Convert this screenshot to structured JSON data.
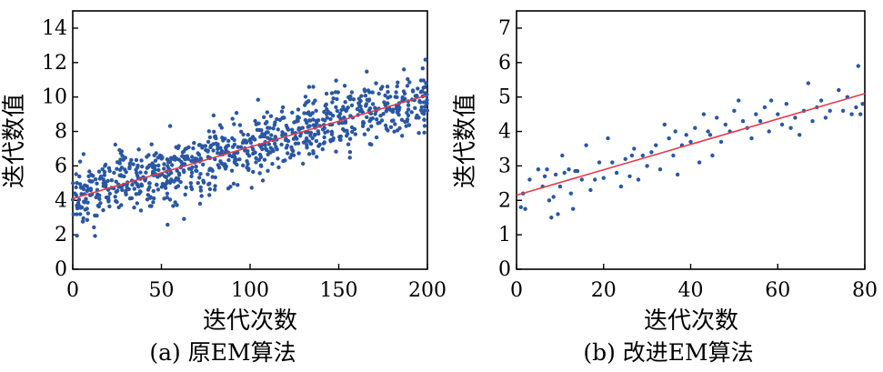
{
  "colors": {
    "points": "#2a57a3",
    "fit_line": "#e23b4a",
    "axes": "#000000"
  },
  "chart_data": [
    {
      "type": "scatter",
      "caption": "(a) 原EM算法",
      "xlabel": "迭代次数",
      "ylabel": "迭代数值",
      "xlim": [
        0,
        200
      ],
      "ylim": [
        0,
        15
      ],
      "xticks": [
        0,
        50,
        100,
        150,
        200
      ],
      "yticks": [
        0,
        2,
        4,
        6,
        8,
        10,
        12,
        14
      ],
      "trend_line": {
        "x": [
          0,
          200
        ],
        "y": [
          4.1,
          10.1
        ]
      },
      "point_cloud": {
        "count": 900,
        "noise_sd": 0.95
      }
    },
    {
      "type": "scatter",
      "caption": "(b) 改进EM算法",
      "xlabel": "迭代次数",
      "ylabel": "迭代数值",
      "xlim": [
        0,
        80
      ],
      "ylim": [
        0,
        7.5
      ],
      "xticks": [
        0,
        20,
        40,
        60,
        80
      ],
      "yticks": [
        0,
        1,
        2,
        3,
        4,
        5,
        6,
        7
      ],
      "trend_line": {
        "x": [
          0,
          80
        ],
        "y": [
          2.15,
          5.1
        ]
      },
      "points": [
        [
          1,
          1.8
        ],
        [
          1.5,
          2.2
        ],
        [
          2,
          1.75
        ],
        [
          3,
          2.6
        ],
        [
          5,
          2.9
        ],
        [
          6,
          2.4
        ],
        [
          7,
          2.9
        ],
        [
          7.5,
          2.0
        ],
        [
          8,
          1.5
        ],
        [
          8.5,
          2.1
        ],
        [
          9,
          2.75
        ],
        [
          9.5,
          1.6
        ],
        [
          10,
          2.4
        ],
        [
          10.5,
          3.3
        ],
        [
          11,
          2.8
        ],
        [
          12,
          2.9
        ],
        [
          12.5,
          2.2
        ],
        [
          13,
          1.75
        ],
        [
          14,
          2.85
        ],
        [
          15,
          2.6
        ],
        [
          16,
          3.6
        ],
        [
          17,
          2.3
        ],
        [
          18,
          2.6
        ],
        [
          19,
          3.1
        ],
        [
          20,
          2.65
        ],
        [
          21,
          3.8
        ],
        [
          22,
          3.1
        ],
        [
          23,
          2.8
        ],
        [
          24,
          2.4
        ],
        [
          25,
          3.2
        ],
        [
          26,
          2.7
        ],
        [
          27,
          3.5
        ],
        [
          28,
          2.6
        ],
        [
          29,
          3.3
        ],
        [
          30,
          3.0
        ],
        [
          31,
          3.4
        ],
        [
          32,
          3.6
        ],
        [
          33,
          2.9
        ],
        [
          34,
          4.2
        ],
        [
          35,
          3.8
        ],
        [
          36,
          3.3
        ],
        [
          37,
          2.75
        ],
        [
          38,
          3.6
        ],
        [
          39,
          3.9
        ],
        [
          40,
          3.7
        ],
        [
          41,
          4.1
        ],
        [
          42,
          3.1
        ],
        [
          43,
          4.5
        ],
        [
          44,
          4.0
        ],
        [
          45,
          3.3
        ],
        [
          46,
          4.4
        ],
        [
          47,
          3.7
        ],
        [
          48,
          4.2
        ],
        [
          49,
          4.0
        ],
        [
          50,
          4.6
        ],
        [
          51,
          4.9
        ],
        [
          52,
          4.3
        ],
        [
          53,
          4.1
        ],
        [
          54,
          3.8
        ],
        [
          55,
          4.5
        ],
        [
          56,
          4.3
        ],
        [
          57,
          4.7
        ],
        [
          58,
          4.0
        ],
        [
          60,
          4.5
        ],
        [
          61,
          4.2
        ],
        [
          62,
          4.8
        ],
        [
          63,
          4.1
        ],
        [
          64,
          4.4
        ],
        [
          65,
          3.9
        ],
        [
          66,
          4.6
        ],
        [
          67,
          5.4
        ],
        [
          68,
          4.3
        ],
        [
          69,
          4.7
        ],
        [
          70,
          4.9
        ],
        [
          72,
          4.6
        ],
        [
          74,
          5.2
        ],
        [
          75,
          4.6
        ],
        [
          76,
          5.0
        ],
        [
          77,
          4.5
        ],
        [
          78,
          4.7
        ],
        [
          78.5,
          5.9
        ],
        [
          79,
          4.5
        ],
        [
          79.5,
          4.8
        ],
        [
          6.5,
          2.7
        ],
        [
          13.5,
          2.85
        ],
        [
          26.5,
          3.3
        ],
        [
          44.5,
          3.9
        ],
        [
          58.5,
          4.9
        ],
        [
          71,
          4.4
        ],
        [
          36.5,
          4.0
        ]
      ]
    }
  ]
}
